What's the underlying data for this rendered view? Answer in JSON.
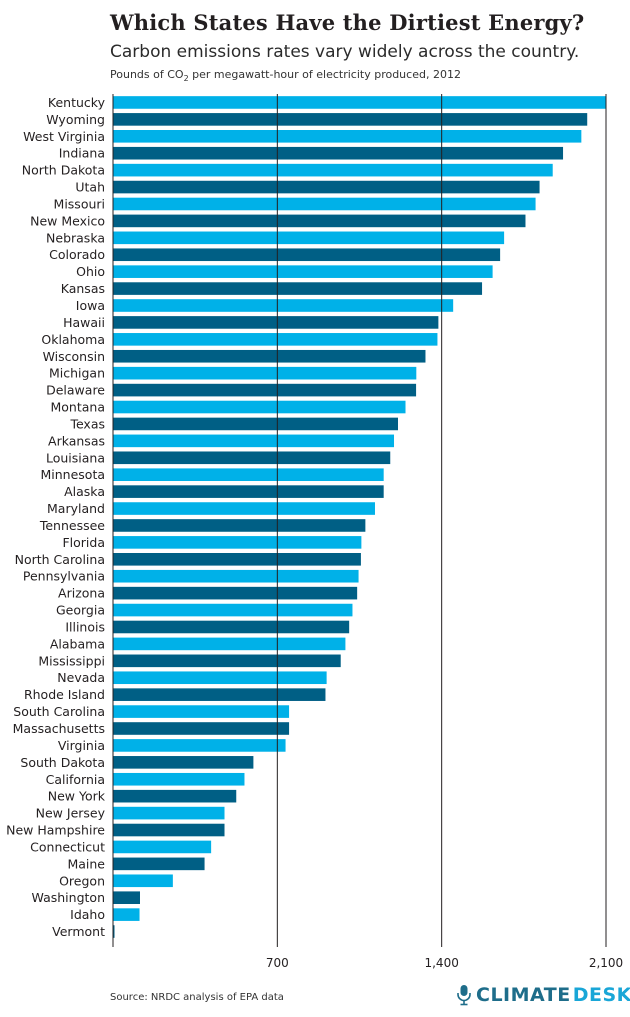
{
  "header": {
    "title": "Which States Have the Dirtiest Energy?",
    "subtitle": "Carbon emissions rates vary widely across the country.",
    "units_prefix": "Pounds of CO",
    "units_sub": "2",
    "units_suffix": " per megawatt-hour of electricity produced, 2012"
  },
  "footer": {
    "source": "Source: NRDC analysis of EPA data",
    "logo_word1": "CLIMATE",
    "logo_word2": "DESK",
    "logo_icon": "microphone-icon"
  },
  "colors": {
    "light": "#00b1e8",
    "dark": "#005f85",
    "grid": "#231f20",
    "text": "#231f20"
  },
  "chart_data": {
    "type": "bar",
    "orientation": "horizontal",
    "title": "Which States Have the Dirtiest Energy?",
    "subtitle": "Carbon emissions rates vary widely across the country.",
    "xlabel": "",
    "ylabel": "",
    "xlim": [
      0,
      2100
    ],
    "xticks": [
      700,
      1400,
      2100
    ],
    "xtick_labels": [
      "700",
      "1,400",
      "2,100"
    ],
    "grid": "vertical lines at ticks",
    "categories": [
      "Kentucky",
      "Wyoming",
      "West Virginia",
      "Indiana",
      "North Dakota",
      "Utah",
      "Missouri",
      "New Mexico",
      "Nebraska",
      "Colorado",
      "Ohio",
      "Kansas",
      "Iowa",
      "Hawaii",
      "Oklahoma",
      "Wisconsin",
      "Michigan",
      "Delaware",
      "Montana",
      "Texas",
      "Arkansas",
      "Louisiana",
      "Minnesota",
      "Alaska",
      "Maryland",
      "Tennessee",
      "Florida",
      "North Carolina",
      "Pennsylvania",
      "Arizona",
      "Georgia",
      "Illinois",
      "Alabama",
      "Mississippi",
      "Nevada",
      "Rhode Island",
      "South Carolina",
      "Massachusetts",
      "Virginia",
      "South Dakota",
      "California",
      "New York",
      "New Jersey",
      "New Hampshire",
      "Connecticut",
      "Maine",
      "Oregon",
      "Washington",
      "Idaho",
      "Vermont"
    ],
    "values": [
      2100,
      2020,
      1995,
      1917,
      1873,
      1817,
      1800,
      1757,
      1666,
      1649,
      1617,
      1572,
      1449,
      1386,
      1382,
      1331,
      1292,
      1291,
      1246,
      1214,
      1197,
      1181,
      1153,
      1153,
      1116,
      1075,
      1058,
      1056,
      1046,
      1040,
      1020,
      1006,
      990,
      970,
      910,
      905,
      750,
      750,
      735,
      598,
      560,
      525,
      475,
      475,
      418,
      390,
      255,
      115,
      113,
      5
    ]
  }
}
